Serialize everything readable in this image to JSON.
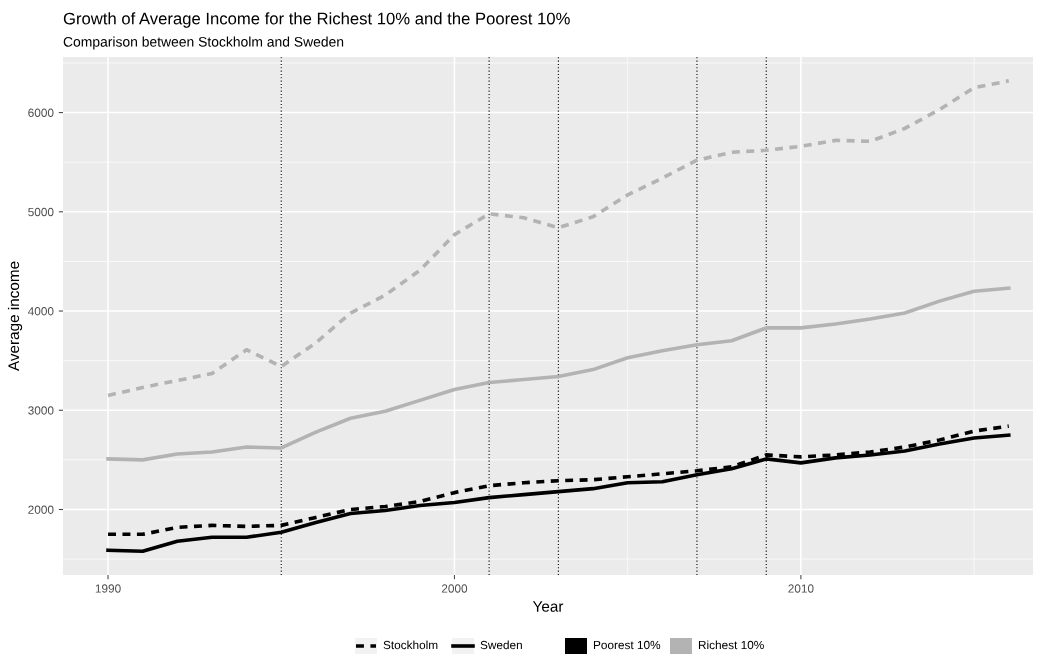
{
  "chart_data": {
    "type": "line",
    "title": "Growth of Average Income for the Richest 10% and the Poorest 10%",
    "subtitle": "Comparison between Stockholm and Sweden",
    "xlabel": "Year",
    "ylabel": "Average income",
    "x": [
      1990,
      1991,
      1992,
      1993,
      1994,
      1995,
      1996,
      1997,
      1998,
      1999,
      2000,
      2001,
      2002,
      2003,
      2004,
      2005,
      2006,
      2007,
      2008,
      2009,
      2010,
      2011,
      2012,
      2013,
      2014,
      2015,
      2016
    ],
    "series": [
      {
        "color": "#000000",
        "line_style": "dashed",
        "values": [
          1750,
          1750,
          1820,
          1840,
          1830,
          1840,
          1920,
          2000,
          2030,
          2080,
          2170,
          2240,
          2270,
          2290,
          2300,
          2330,
          2360,
          2390,
          2430,
          2550,
          2530,
          2550,
          2580,
          2630,
          2700,
          2790,
          2840
        ]
      },
      {
        "color": "#000000",
        "line_style": "solid",
        "values": [
          1590,
          1580,
          1680,
          1720,
          1720,
          1770,
          1870,
          1960,
          1990,
          2040,
          2070,
          2120,
          2150,
          2180,
          2210,
          2270,
          2280,
          2350,
          2410,
          2510,
          2470,
          2520,
          2550,
          2590,
          2660,
          2720,
          2750
        ]
      },
      {
        "color": "#b3b3b3",
        "line_style": "dashed",
        "values": [
          3150,
          3230,
          3300,
          3370,
          3610,
          3440,
          3680,
          3980,
          4160,
          4410,
          4770,
          4980,
          4940,
          4840,
          4950,
          5170,
          5340,
          5520,
          5600,
          5620,
          5660,
          5720,
          5710,
          5840,
          6030,
          6250,
          6320
        ]
      },
      {
        "color": "#b3b3b3",
        "line_style": "solid",
        "values": [
          2510,
          2500,
          2560,
          2580,
          2630,
          2620,
          2780,
          2920,
          2990,
          3100,
          3210,
          3280,
          3310,
          3340,
          3410,
          3530,
          3600,
          3660,
          3700,
          3830,
          3830,
          3870,
          3920,
          3980,
          4100,
          4200,
          4230
        ]
      }
    ],
    "xlim": [
      1988.7,
      2016.7
    ],
    "ylim": [
      1340,
      6560
    ],
    "xticks": [
      1990,
      2000,
      2010
    ],
    "yticks": [
      2000,
      3000,
      4000,
      5000,
      6000
    ],
    "ref_lines": [
      {
        "axis": "x",
        "value": 1995,
        "color": "#000000",
        "line_style": "dotted"
      },
      {
        "axis": "x",
        "value": 2001,
        "color": "#000000",
        "line_style": "dotted"
      },
      {
        "axis": "x",
        "value": 2003,
        "color": "#000000",
        "line_style": "dotted"
      },
      {
        "axis": "x",
        "value": 2007,
        "color": "#000000",
        "line_style": "dotted"
      },
      {
        "axis": "x",
        "value": 2009,
        "color": "#000000",
        "line_style": "dotted"
      }
    ],
    "annotations": [
      "Stockholm",
      "Sweden",
      "Poorest 10%",
      "Richest 10%"
    ],
    "grid": true
  }
}
